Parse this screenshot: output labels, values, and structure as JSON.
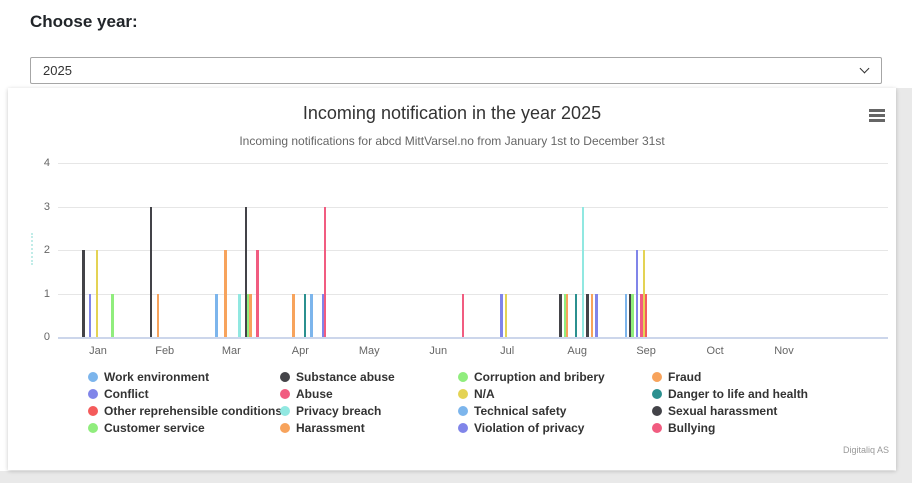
{
  "header": {
    "heading": "Choose year:",
    "year_select": {
      "value": "2025"
    }
  },
  "chart": {
    "title": "Incoming notification in the year 2025",
    "subtitle": "Incoming notifications for abcd MittVarsel.no from January 1st to December 31st",
    "credits": "Digitaliq AS",
    "menu_icon": "hamburger-icon"
  },
  "chart_data": {
    "type": "bar",
    "title": "Incoming notification in the year 2025",
    "subtitle": "Incoming notifications for abcd MittVarsel.no from January 1st to December 31st",
    "xlabel": "",
    "ylabel": "",
    "x_axis": {
      "type": "datetime",
      "start": "2025-01-01",
      "end": "2025-12-31",
      "visible_tick_labels": [
        "Jan",
        "Feb",
        "Mar",
        "Apr",
        "May",
        "Jun",
        "Jul",
        "Aug",
        "Sep",
        "Oct",
        "Nov"
      ]
    },
    "y_axis": {
      "min": 0,
      "max": 4,
      "ticks": [
        0,
        1,
        2,
        3,
        4
      ]
    },
    "grid": true,
    "legend_position": "bottom",
    "palette": {
      "blue": "#7cb5ec",
      "dark": "#434348",
      "green": "#90ed7d",
      "orange": "#f7a35c",
      "purple": "#8085e9",
      "pink": "#f15c80",
      "yellow": "#e4d354",
      "teal": "#2b908f",
      "red": "#f45b5b",
      "cyan": "#91e8e1"
    },
    "legend": [
      {
        "label": "Work environment",
        "color_key": "blue"
      },
      {
        "label": "Substance abuse",
        "color_key": "dark"
      },
      {
        "label": "Corruption and bribery",
        "color_key": "green"
      },
      {
        "label": "Fraud",
        "color_key": "orange"
      },
      {
        "label": "Conflict",
        "color_key": "purple"
      },
      {
        "label": "Abuse",
        "color_key": "pink"
      },
      {
        "label": "N/A",
        "color_key": "yellow"
      },
      {
        "label": "Danger to life and health",
        "color_key": "teal"
      },
      {
        "label": "Other reprehensible conditions",
        "color_key": "red"
      },
      {
        "label": "Privacy breach",
        "color_key": "cyan"
      },
      {
        "label": "Technical safety",
        "color_key": "blue"
      },
      {
        "label": "Sexual harassment",
        "color_key": "dark"
      },
      {
        "label": "Customer service",
        "color_key": "green"
      },
      {
        "label": "Harassment",
        "color_key": "orange"
      },
      {
        "label": "Violation of privacy",
        "color_key": "purple"
      },
      {
        "label": "Bullying",
        "color_key": "pink"
      }
    ],
    "bars": [
      {
        "date": "2025-01-10",
        "value": 2,
        "color_key": "dark"
      },
      {
        "date": "2025-01-13",
        "value": 1,
        "color_key": "purple"
      },
      {
        "date": "2025-01-16",
        "value": 2,
        "color_key": "yellow"
      },
      {
        "date": "2025-01-23",
        "value": 1,
        "color_key": "green"
      },
      {
        "date": "2025-02-09",
        "value": 3,
        "color_key": "dark"
      },
      {
        "date": "2025-02-12",
        "value": 1,
        "color_key": "orange"
      },
      {
        "date": "2025-03-10",
        "value": 1,
        "color_key": "blue"
      },
      {
        "date": "2025-03-14",
        "value": 2,
        "color_key": "orange"
      },
      {
        "date": "2025-03-20",
        "value": 1,
        "color_key": "cyan"
      },
      {
        "date": "2025-03-23",
        "value": 3,
        "color_key": "dark"
      },
      {
        "date": "2025-03-24",
        "value": 1,
        "color_key": "green"
      },
      {
        "date": "2025-03-25",
        "value": 1,
        "color_key": "orange"
      },
      {
        "date": "2025-03-28",
        "value": 2,
        "color_key": "pink"
      },
      {
        "date": "2025-04-13",
        "value": 1,
        "color_key": "orange"
      },
      {
        "date": "2025-04-18",
        "value": 1,
        "color_key": "teal"
      },
      {
        "date": "2025-04-21",
        "value": 1,
        "color_key": "blue"
      },
      {
        "date": "2025-04-26",
        "value": 1,
        "color_key": "purple"
      },
      {
        "date": "2025-04-27",
        "value": 3,
        "color_key": "pink"
      },
      {
        "date": "2025-06-27",
        "value": 1,
        "color_key": "pink"
      },
      {
        "date": "2025-07-14",
        "value": 1,
        "color_key": "purple"
      },
      {
        "date": "2025-07-16",
        "value": 1,
        "color_key": "yellow"
      },
      {
        "date": "2025-08-09",
        "value": 1,
        "color_key": "dark"
      },
      {
        "date": "2025-08-11",
        "value": 1,
        "color_key": "green"
      },
      {
        "date": "2025-08-12",
        "value": 1,
        "color_key": "orange"
      },
      {
        "date": "2025-08-16",
        "value": 1,
        "color_key": "teal"
      },
      {
        "date": "2025-08-19",
        "value": 3,
        "color_key": "cyan"
      },
      {
        "date": "2025-08-21",
        "value": 1,
        "color_key": "dark"
      },
      {
        "date": "2025-08-23",
        "value": 1,
        "color_key": "orange"
      },
      {
        "date": "2025-08-25",
        "value": 1,
        "color_key": "purple"
      },
      {
        "date": "2025-09-07",
        "value": 1,
        "color_key": "blue"
      },
      {
        "date": "2025-09-09",
        "value": 1,
        "color_key": "dark"
      },
      {
        "date": "2025-09-10",
        "value": 1,
        "color_key": "green"
      },
      {
        "date": "2025-09-12",
        "value": 2,
        "color_key": "purple"
      },
      {
        "date": "2025-09-14",
        "value": 1,
        "color_key": "pink"
      },
      {
        "date": "2025-09-15",
        "value": 2,
        "color_key": "yellow"
      },
      {
        "date": "2025-09-16",
        "value": 1,
        "color_key": "red"
      }
    ]
  }
}
